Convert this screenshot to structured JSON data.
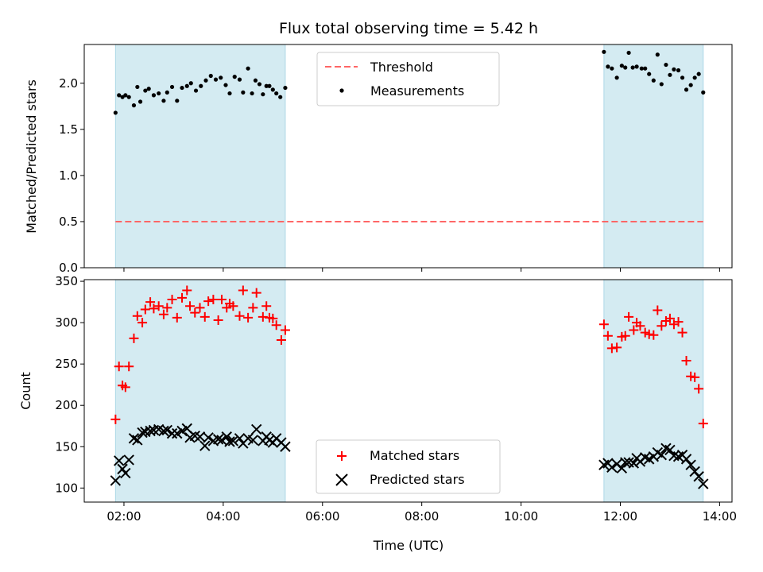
{
  "chart_data": {
    "title": "Flux total observing time = 5.42 h",
    "xlabel": "Time (UTC)",
    "x_ticks": [
      "02:00",
      "04:00",
      "06:00",
      "08:00",
      "10:00",
      "12:00",
      "14:00"
    ],
    "x_tick_values_h": [
      2,
      4,
      6,
      8,
      10,
      12,
      14
    ],
    "xlim_h": [
      1.2,
      14.25
    ],
    "shaded_intervals_h": [
      [
        1.83,
        5.25
      ],
      [
        11.67,
        13.67
      ]
    ],
    "shade_color": "#add8e6",
    "panels": [
      {
        "type": "scatter",
        "ylabel": "Matched/Predicted stars",
        "ylim": [
          0,
          2.42
        ],
        "y_ticks": [
          "0.0",
          "0.5",
          "1.0",
          "1.5",
          "2.0"
        ],
        "y_tick_values": [
          0,
          0.5,
          1.0,
          1.5,
          2.0
        ],
        "legend_position": "top-center",
        "threshold": {
          "name": "Threshold",
          "value": 0.5,
          "color": "#ff6666",
          "x_range_h": [
            1.83,
            13.67
          ]
        },
        "series": [
          {
            "name": "Measurements",
            "marker": "dot",
            "color": "#000000",
            "points": [
              [
                1.83,
                1.68
              ],
              [
                1.9,
                1.87
              ],
              [
                1.97,
                1.85
              ],
              [
                2.03,
                1.87
              ],
              [
                2.1,
                1.85
              ],
              [
                2.2,
                1.76
              ],
              [
                2.27,
                1.96
              ],
              [
                2.33,
                1.8
              ],
              [
                2.43,
                1.92
              ],
              [
                2.5,
                1.94
              ],
              [
                2.6,
                1.87
              ],
              [
                2.7,
                1.89
              ],
              [
                2.8,
                1.81
              ],
              [
                2.87,
                1.9
              ],
              [
                2.97,
                1.96
              ],
              [
                3.07,
                1.81
              ],
              [
                3.17,
                1.95
              ],
              [
                3.27,
                1.97
              ],
              [
                3.35,
                2.0
              ],
              [
                3.45,
                1.92
              ],
              [
                3.55,
                1.97
              ],
              [
                3.65,
                2.03
              ],
              [
                3.75,
                2.08
              ],
              [
                3.85,
                2.04
              ],
              [
                3.95,
                2.06
              ],
              [
                4.05,
                1.98
              ],
              [
                4.13,
                1.89
              ],
              [
                4.23,
                2.07
              ],
              [
                4.33,
                2.04
              ],
              [
                4.4,
                1.9
              ],
              [
                4.5,
                2.16
              ],
              [
                4.58,
                1.89
              ],
              [
                4.65,
                2.03
              ],
              [
                4.73,
                1.99
              ],
              [
                4.8,
                1.88
              ],
              [
                4.87,
                1.97
              ],
              [
                4.93,
                1.97
              ],
              [
                5.0,
                1.93
              ],
              [
                5.07,
                1.89
              ],
              [
                5.15,
                1.85
              ],
              [
                5.25,
                1.95
              ],
              [
                11.67,
                2.34
              ],
              [
                11.75,
                2.18
              ],
              [
                11.83,
                2.16
              ],
              [
                11.93,
                2.06
              ],
              [
                12.03,
                2.19
              ],
              [
                12.1,
                2.17
              ],
              [
                12.17,
                2.33
              ],
              [
                12.25,
                2.17
              ],
              [
                12.33,
                2.18
              ],
              [
                12.43,
                2.16
              ],
              [
                12.5,
                2.16
              ],
              [
                12.58,
                2.1
              ],
              [
                12.67,
                2.03
              ],
              [
                12.75,
                2.31
              ],
              [
                12.83,
                1.99
              ],
              [
                12.92,
                2.2
              ],
              [
                13.0,
                2.09
              ],
              [
                13.08,
                2.15
              ],
              [
                13.17,
                2.14
              ],
              [
                13.25,
                2.06
              ],
              [
                13.33,
                1.93
              ],
              [
                13.42,
                1.98
              ],
              [
                13.5,
                2.06
              ],
              [
                13.58,
                2.1
              ],
              [
                13.67,
                1.9
              ]
            ]
          }
        ]
      },
      {
        "type": "scatter",
        "ylabel": "Count",
        "ylim": [
          83,
          352
        ],
        "y_ticks": [
          "100",
          "150",
          "200",
          "250",
          "300",
          "350"
        ],
        "y_tick_values": [
          100,
          150,
          200,
          250,
          300,
          350
        ],
        "legend_position": "bottom-center",
        "series": [
          {
            "name": "Matched stars",
            "marker": "plus",
            "color": "#ff0000",
            "points": [
              [
                1.83,
                183
              ],
              [
                1.9,
                247
              ],
              [
                1.97,
                224
              ],
              [
                2.03,
                222
              ],
              [
                2.1,
                247
              ],
              [
                2.2,
                281
              ],
              [
                2.27,
                308
              ],
              [
                2.37,
                300
              ],
              [
                2.43,
                316
              ],
              [
                2.53,
                325
              ],
              [
                2.6,
                317
              ],
              [
                2.7,
                320
              ],
              [
                2.8,
                310
              ],
              [
                2.87,
                318
              ],
              [
                2.97,
                328
              ],
              [
                3.07,
                306
              ],
              [
                3.17,
                330
              ],
              [
                3.27,
                339
              ],
              [
                3.33,
                320
              ],
              [
                3.43,
                312
              ],
              [
                3.53,
                318
              ],
              [
                3.63,
                307
              ],
              [
                3.7,
                326
              ],
              [
                3.8,
                328
              ],
              [
                3.9,
                303
              ],
              [
                3.97,
                328
              ],
              [
                4.07,
                318
              ],
              [
                4.13,
                323
              ],
              [
                4.2,
                320
              ],
              [
                4.33,
                308
              ],
              [
                4.4,
                339
              ],
              [
                4.5,
                306
              ],
              [
                4.6,
                318
              ],
              [
                4.67,
                336
              ],
              [
                4.8,
                307
              ],
              [
                4.87,
                320
              ],
              [
                4.93,
                306
              ],
              [
                5.0,
                305
              ],
              [
                5.07,
                297
              ],
              [
                5.17,
                279
              ],
              [
                5.25,
                291
              ],
              [
                11.67,
                298
              ],
              [
                11.75,
                284
              ],
              [
                11.83,
                269
              ],
              [
                11.93,
                270
              ],
              [
                12.03,
                283
              ],
              [
                12.1,
                284
              ],
              [
                12.17,
                307
              ],
              [
                12.27,
                291
              ],
              [
                12.33,
                300
              ],
              [
                12.4,
                296
              ],
              [
                12.5,
                288
              ],
              [
                12.58,
                286
              ],
              [
                12.67,
                285
              ],
              [
                12.75,
                315
              ],
              [
                12.83,
                296
              ],
              [
                12.92,
                302
              ],
              [
                13.0,
                305
              ],
              [
                13.08,
                298
              ],
              [
                13.17,
                301
              ],
              [
                13.25,
                288
              ],
              [
                13.33,
                254
              ],
              [
                13.42,
                235
              ],
              [
                13.5,
                234
              ],
              [
                13.58,
                220
              ],
              [
                13.67,
                178
              ]
            ]
          },
          {
            "name": "Predicted stars",
            "marker": "x",
            "color": "#000000",
            "points": [
              [
                1.83,
                109
              ],
              [
                1.9,
                133
              ],
              [
                1.97,
                123
              ],
              [
                2.03,
                118
              ],
              [
                2.1,
                134
              ],
              [
                2.2,
                160
              ],
              [
                2.27,
                158
              ],
              [
                2.37,
                167
              ],
              [
                2.43,
                168
              ],
              [
                2.53,
                169
              ],
              [
                2.6,
                170
              ],
              [
                2.7,
                171
              ],
              [
                2.8,
                169
              ],
              [
                2.87,
                170
              ],
              [
                2.97,
                166
              ],
              [
                3.07,
                166
              ],
              [
                3.17,
                169
              ],
              [
                3.27,
                172
              ],
              [
                3.33,
                161
              ],
              [
                3.43,
                163
              ],
              [
                3.53,
                162
              ],
              [
                3.63,
                151
              ],
              [
                3.7,
                161
              ],
              [
                3.8,
                157
              ],
              [
                3.9,
                159
              ],
              [
                3.97,
                158
              ],
              [
                4.07,
                162
              ],
              [
                4.13,
                156
              ],
              [
                4.2,
                157
              ],
              [
                4.33,
                160
              ],
              [
                4.4,
                154
              ],
              [
                4.5,
                160
              ],
              [
                4.6,
                158
              ],
              [
                4.67,
                171
              ],
              [
                4.8,
                157
              ],
              [
                4.87,
                162
              ],
              [
                4.93,
                158
              ],
              [
                5.0,
                155
              ],
              [
                5.07,
                160
              ],
              [
                5.17,
                155
              ],
              [
                5.25,
                150
              ],
              [
                11.67,
                128
              ],
              [
                11.75,
                130
              ],
              [
                11.83,
                125
              ],
              [
                11.93,
                129
              ],
              [
                12.03,
                124
              ],
              [
                12.1,
                131
              ],
              [
                12.17,
                131
              ],
              [
                12.27,
                130
              ],
              [
                12.33,
                136
              ],
              [
                12.4,
                132
              ],
              [
                12.5,
                137
              ],
              [
                12.58,
                135
              ],
              [
                12.67,
                138
              ],
              [
                12.75,
                143
              ],
              [
                12.83,
                140
              ],
              [
                12.92,
                148
              ],
              [
                13.0,
                146
              ],
              [
                13.08,
                139
              ],
              [
                13.17,
                138
              ],
              [
                13.25,
                140
              ],
              [
                13.33,
                135
              ],
              [
                13.42,
                128
              ],
              [
                13.5,
                120
              ],
              [
                13.58,
                114
              ],
              [
                13.67,
                105
              ]
            ]
          }
        ]
      }
    ]
  }
}
